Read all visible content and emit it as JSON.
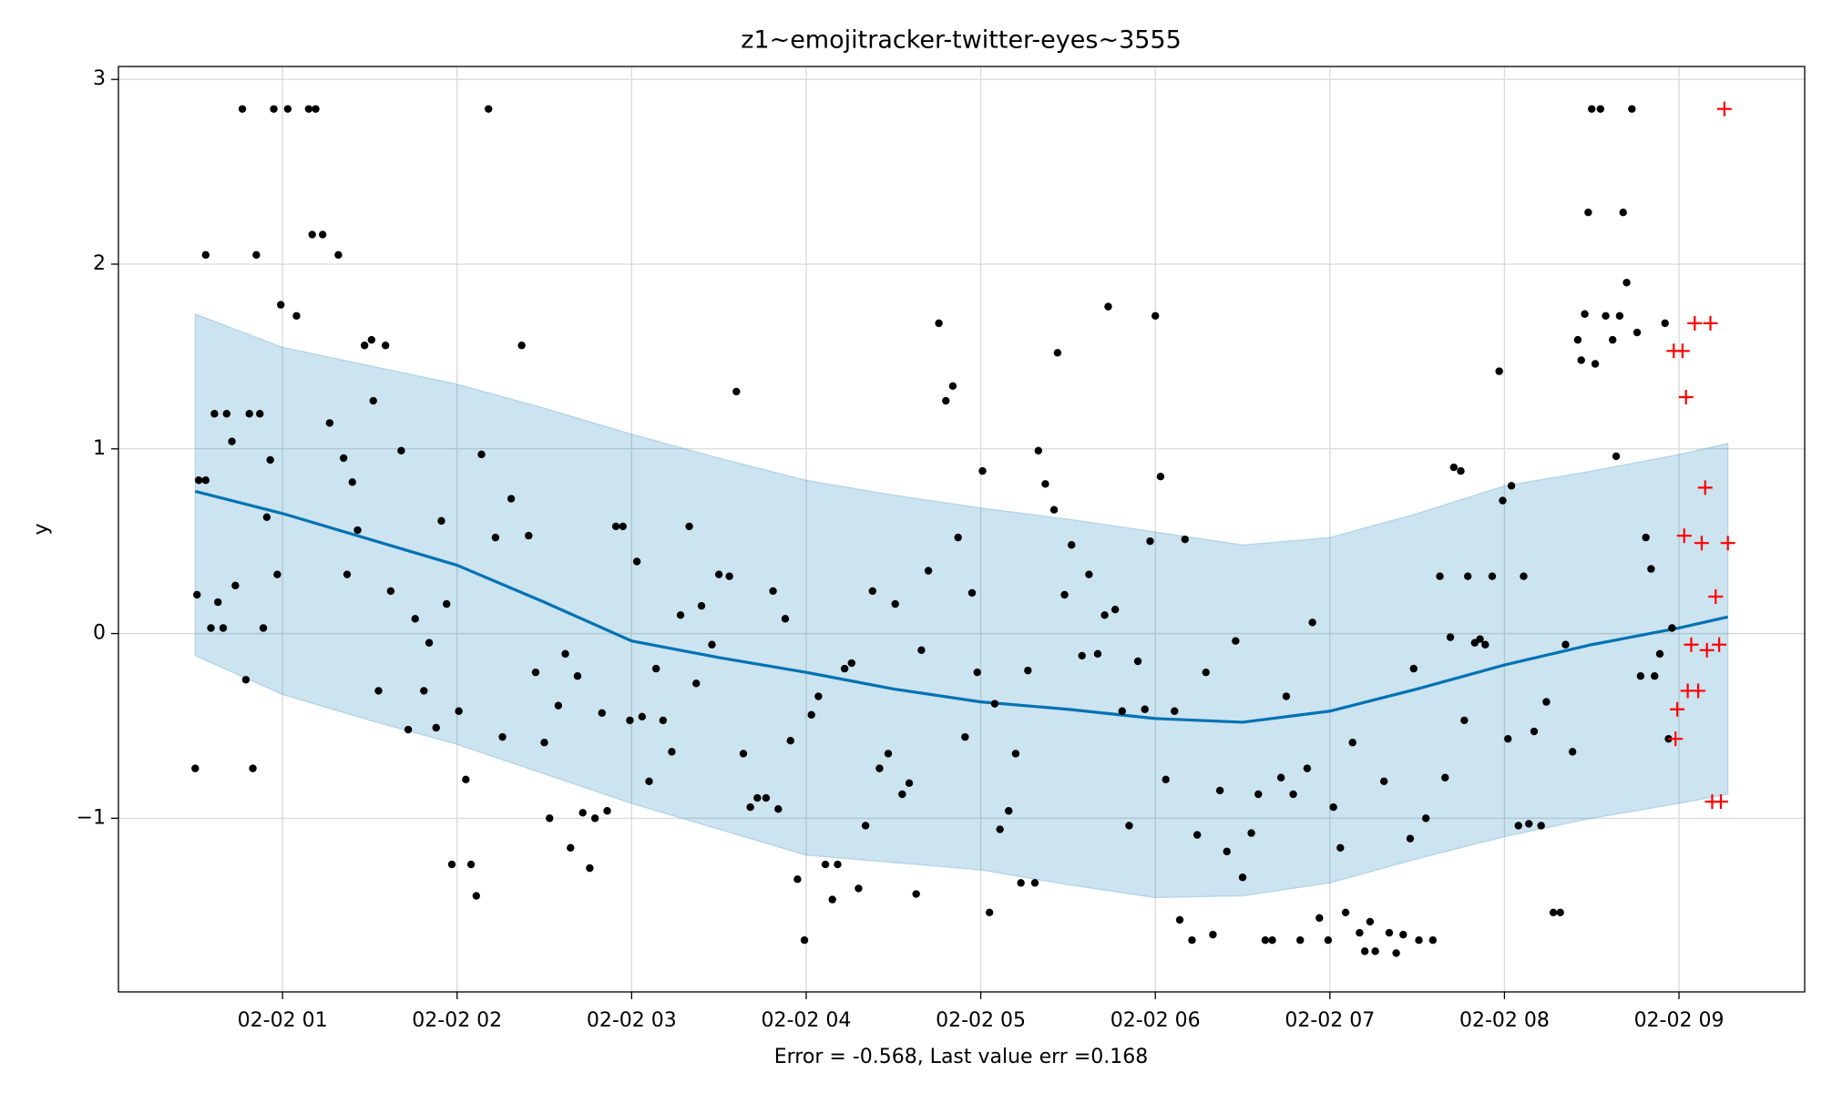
{
  "chart_data": {
    "type": "line",
    "title": "z1~emojitracker-twitter-eyes~3555",
    "xlabel": "Error = -0.568, Last value err =0.168",
    "ylabel": "y",
    "xlim": [
      0.06,
      9.72
    ],
    "ylim": [
      -1.94,
      3.07
    ],
    "xticks": [
      {
        "value": 1,
        "label": "02-02 01"
      },
      {
        "value": 2,
        "label": "02-02 02"
      },
      {
        "value": 3,
        "label": "02-02 03"
      },
      {
        "value": 4,
        "label": "02-02 04"
      },
      {
        "value": 5,
        "label": "02-02 05"
      },
      {
        "value": 6,
        "label": "02-02 06"
      },
      {
        "value": 7,
        "label": "02-02 07"
      },
      {
        "value": 8,
        "label": "02-02 08"
      },
      {
        "value": 9,
        "label": "02-02 09"
      }
    ],
    "yticks": [
      {
        "value": -1,
        "label": "−1"
      },
      0,
      1,
      2,
      3
    ],
    "grid": true,
    "series": [
      {
        "type": "band",
        "color": "#0072b2",
        "x": [
          0.5,
          1,
          1.5,
          2,
          2.5,
          3,
          3.5,
          4,
          4.5,
          5,
          5.5,
          6,
          6.5,
          7,
          7.5,
          8,
          8.5,
          9,
          9.28
        ],
        "upper": [
          1.73,
          1.55,
          1.45,
          1.35,
          1.22,
          1.08,
          0.95,
          0.83,
          0.75,
          0.68,
          0.62,
          0.55,
          0.48,
          0.52,
          0.65,
          0.8,
          0.88,
          0.97,
          1.03
        ],
        "lower": [
          -0.12,
          -0.33,
          -0.47,
          -0.6,
          -0.76,
          -0.92,
          -1.06,
          -1.2,
          -1.24,
          -1.28,
          -1.36,
          -1.43,
          -1.42,
          -1.35,
          -1.22,
          -1.1,
          -1.0,
          -0.92,
          -0.87
        ]
      },
      {
        "type": "line",
        "color": "#0072b2",
        "x": [
          0.5,
          1,
          1.5,
          2,
          2.5,
          3,
          3.5,
          4,
          4.5,
          5,
          5.5,
          6,
          6.5,
          7,
          7.5,
          8,
          8.5,
          9,
          9.28
        ],
        "values": [
          0.77,
          0.65,
          0.51,
          0.37,
          0.17,
          -0.04,
          -0.13,
          -0.21,
          -0.3,
          -0.37,
          -0.41,
          -0.46,
          -0.48,
          -0.42,
          -0.3,
          -0.17,
          -0.06,
          0.03,
          0.09
        ]
      },
      {
        "type": "scatter",
        "marker": "dot",
        "color": "#000000",
        "x": [
          0.5,
          0.51,
          0.52,
          0.56,
          0.56,
          0.59,
          0.61,
          0.63,
          0.66,
          0.68,
          0.71,
          0.73,
          0.77,
          0.79,
          0.81,
          0.83,
          0.85,
          0.87,
          0.89,
          0.91,
          0.93,
          0.95,
          0.97,
          0.99,
          1.03,
          1.08,
          1.15,
          1.17,
          1.19,
          1.23,
          1.27,
          1.32,
          1.35,
          1.37,
          1.4,
          1.43,
          1.47,
          1.51,
          1.52,
          1.55,
          1.59,
          1.62,
          1.68,
          1.72,
          1.76,
          1.81,
          1.84,
          1.88,
          1.91,
          1.94,
          1.97,
          2.01,
          2.05,
          2.08,
          2.11,
          2.14,
          2.18,
          2.22,
          2.26,
          2.31,
          2.37,
          2.41,
          2.45,
          2.5,
          2.53,
          2.58,
          2.62,
          2.65,
          2.69,
          2.72,
          2.76,
          2.79,
          2.83,
          2.86,
          2.91,
          2.95,
          2.99,
          3.03,
          3.06,
          3.1,
          3.14,
          3.18,
          3.23,
          3.28,
          3.33,
          3.37,
          3.4,
          3.46,
          3.5,
          3.56,
          3.6,
          3.64,
          3.68,
          3.72,
          3.77,
          3.81,
          3.84,
          3.88,
          3.91,
          3.95,
          3.99,
          4.03,
          4.07,
          4.11,
          4.15,
          4.18,
          4.22,
          4.26,
          4.3,
          4.34,
          4.38,
          4.42,
          4.47,
          4.51,
          4.55,
          4.59,
          4.63,
          4.66,
          4.7,
          4.76,
          4.8,
          4.84,
          4.87,
          4.91,
          4.95,
          4.98,
          5.01,
          5.05,
          5.08,
          5.11,
          5.16,
          5.2,
          5.23,
          5.27,
          5.31,
          5.33,
          5.37,
          5.42,
          5.44,
          5.48,
          5.52,
          5.58,
          5.62,
          5.67,
          5.71,
          5.73,
          5.77,
          5.81,
          5.85,
          5.9,
          5.94,
          5.97,
          6.0,
          6.03,
          6.06,
          6.11,
          6.14,
          6.17,
          6.21,
          6.24,
          6.29,
          6.33,
          6.37,
          6.41,
          6.46,
          6.5,
          6.55,
          6.59,
          6.63,
          6.67,
          6.72,
          6.75,
          6.79,
          6.83,
          6.87,
          6.9,
          6.94,
          6.99,
          7.02,
          7.06,
          7.09,
          7.13,
          7.17,
          7.2,
          7.23,
          7.26,
          7.31,
          7.34,
          7.38,
          7.42,
          7.46,
          7.48,
          7.51,
          7.55,
          7.59,
          7.63,
          7.66,
          7.69,
          7.71,
          7.75,
          7.77,
          7.79,
          7.83,
          7.86,
          7.89,
          7.93,
          7.97,
          7.99,
          8.02,
          8.04,
          8.08,
          8.11,
          8.14,
          8.17,
          8.21,
          8.24,
          8.28,
          8.32,
          8.35,
          8.39,
          8.42,
          8.44,
          8.46,
          8.48,
          8.5,
          8.52,
          8.55,
          8.58,
          8.62,
          8.64,
          8.66,
          8.68,
          8.7,
          8.73,
          8.76,
          8.78,
          8.81,
          8.84,
          8.86,
          8.89,
          8.92,
          8.94,
          8.96
        ],
        "values": [
          -0.73,
          0.21,
          0.83,
          0.83,
          2.05,
          0.03,
          1.19,
          0.17,
          0.03,
          1.19,
          1.04,
          0.26,
          2.84,
          -0.25,
          1.19,
          -0.73,
          2.05,
          1.19,
          0.03,
          0.63,
          0.94,
          2.84,
          0.32,
          1.78,
          2.84,
          1.72,
          2.84,
          2.16,
          2.84,
          2.16,
          1.14,
          2.05,
          0.95,
          0.32,
          0.82,
          0.56,
          1.56,
          1.59,
          1.26,
          -0.31,
          1.56,
          0.23,
          0.99,
          -0.52,
          0.08,
          -0.31,
          -0.05,
          -0.51,
          0.61,
          0.16,
          -1.25,
          -0.42,
          -0.79,
          -1.25,
          -1.42,
          0.97,
          2.84,
          0.52,
          -0.56,
          0.73,
          1.56,
          0.53,
          -0.21,
          -0.59,
          -1.0,
          -0.39,
          -0.11,
          -1.16,
          -0.23,
          -0.97,
          -1.27,
          -1.0,
          -0.43,
          -0.96,
          0.58,
          0.58,
          -0.47,
          0.39,
          -0.45,
          -0.8,
          -0.19,
          -0.47,
          -0.64,
          0.1,
          0.58,
          -0.27,
          0.15,
          -0.06,
          0.32,
          0.31,
          1.31,
          -0.65,
          -0.94,
          -0.89,
          -0.89,
          0.23,
          -0.95,
          0.08,
          -0.58,
          -1.33,
          -1.66,
          -0.44,
          -0.34,
          -1.25,
          -1.44,
          -1.25,
          -0.19,
          -0.16,
          -1.38,
          -1.04,
          0.23,
          -0.73,
          -0.65,
          0.16,
          -0.87,
          -0.81,
          -1.41,
          -0.09,
          0.34,
          1.68,
          1.26,
          1.34,
          0.52,
          -0.56,
          0.22,
          -0.21,
          0.88,
          -1.51,
          -0.38,
          -1.06,
          -0.96,
          -0.65,
          -1.35,
          -0.2,
          -1.35,
          0.99,
          0.81,
          0.67,
          1.52,
          0.21,
          0.48,
          -0.12,
          0.32,
          -0.11,
          0.1,
          1.77,
          0.13,
          -0.42,
          -1.04,
          -0.15,
          -0.41,
          0.5,
          1.72,
          0.85,
          -0.79,
          -0.42,
          -1.55,
          0.51,
          -1.66,
          -1.09,
          -0.21,
          -1.63,
          -0.85,
          -1.18,
          -0.04,
          -1.32,
          -1.08,
          -0.87,
          -1.66,
          -1.66,
          -0.78,
          -0.34,
          -0.87,
          -1.66,
          -0.73,
          0.06,
          -1.54,
          -1.66,
          -0.94,
          -1.16,
          -1.51,
          -0.59,
          -1.62,
          -1.72,
          -1.56,
          -1.72,
          -0.8,
          -1.62,
          -1.73,
          -1.63,
          -1.11,
          -0.19,
          -1.66,
          -1.0,
          -1.66,
          0.31,
          -0.78,
          -0.02,
          0.9,
          0.88,
          -0.47,
          0.31,
          -0.05,
          -0.03,
          -0.06,
          0.31,
          1.42,
          0.72,
          -0.57,
          0.8,
          -1.04,
          0.31,
          -1.03,
          -0.53,
          -1.04,
          -0.37,
          -1.51,
          -1.51,
          -0.06,
          -0.64,
          1.59,
          1.48,
          1.73,
          2.28,
          2.84,
          1.46,
          2.84,
          1.72,
          1.59,
          0.96,
          1.72,
          2.28,
          1.9,
          2.84,
          1.63,
          -0.23,
          0.52,
          0.35,
          -0.23,
          -0.11,
          1.68,
          -0.57,
          0.03
        ]
      },
      {
        "type": "scatter",
        "marker": "plus",
        "color": "#ff0000",
        "x": [
          8.97,
          9.02,
          9.04,
          9.09,
          9.18,
          9.26,
          9.15,
          9.03,
          9.13,
          9.28,
          9.21,
          9.07,
          9.16,
          9.23,
          9.05,
          9.11,
          8.99,
          8.98,
          9.19,
          9.24
        ],
        "values": [
          1.53,
          1.53,
          1.28,
          1.68,
          1.68,
          2.84,
          0.79,
          0.53,
          0.49,
          0.49,
          0.2,
          -0.06,
          -0.09,
          -0.06,
          -0.31,
          -0.31,
          -0.41,
          -0.57,
          -0.91,
          -0.91
        ]
      }
    ]
  }
}
